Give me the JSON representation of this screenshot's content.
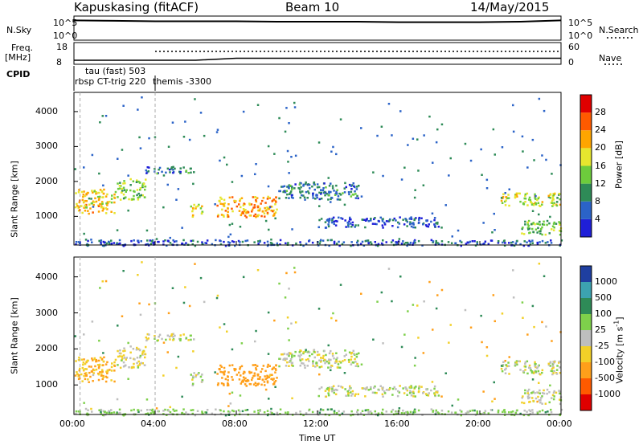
{
  "header": {
    "radar": "Kapuskasing (fitACF)",
    "beam": "Beam 10",
    "date": "14/May/2015"
  },
  "strip": {
    "noise_sky_label": "N.Sky",
    "noise_search_label": "N.Search",
    "noise_ticks": [
      "10^5",
      "10^0"
    ],
    "freq_label": "Freq.",
    "freq_unit": "[MHz]",
    "freq_ticks": [
      "18",
      "8"
    ],
    "nave_label": "Nave",
    "nave_ticks": [
      "60",
      "0"
    ],
    "cpid_label": "CPID"
  },
  "cpid_annotations": [
    {
      "text": "tau (fast) 503",
      "time_h": 1.0
    },
    {
      "text": "rbsp CT-trig 220",
      "time_h": 0.0
    },
    {
      "text": "themis -3300",
      "time_h": 4.0
    }
  ],
  "axes": {
    "xlabel": "Time UT",
    "x_ticks": [
      "00:00",
      "04:00",
      "08:00",
      "12:00",
      "16:00",
      "20:00",
      "00:00"
    ],
    "x_range_h": [
      0,
      24
    ],
    "ylabel": "Slant Range [km]",
    "y_ticks": [
      1000,
      2000,
      3000,
      4000
    ],
    "y_range_km": [
      180,
      4550
    ]
  },
  "colorbars": {
    "power": {
      "label": "Power [dB]",
      "ticks": [
        "4",
        "8",
        "12",
        "16",
        "20",
        "24",
        "28"
      ],
      "colors": [
        "#1f1fd8",
        "#2b63c8",
        "#2e8b57",
        "#6dcc3c",
        "#e6e62e",
        "#ffa500",
        "#ff5a00",
        "#e00000"
      ]
    },
    "velocity": {
      "label": "Velocity [m s",
      "label_sup": "-1",
      "label_end": "]",
      "ticks": [
        "1000",
        "500",
        "100",
        "25",
        "-25",
        "-100",
        "-500",
        "-1000"
      ],
      "colors": [
        "#1f3fa0",
        "#3ca3b0",
        "#2e8b57",
        "#7ed04b",
        "#bebebe",
        "#f2d028",
        "#ff9f1a",
        "#ff5a00",
        "#e00000"
      ]
    }
  },
  "chart_data": [
    {
      "type": "heatmap",
      "title": "Power",
      "x_unit": "hours UT",
      "y_unit": "km",
      "scatter_regions": [
        {
          "t0": 0.0,
          "t1": 2.0,
          "r0": 1100,
          "r1": 1800,
          "power_db": 20,
          "velocity": -100
        },
        {
          "t0": 2.0,
          "t1": 3.5,
          "r0": 1500,
          "r1": 2100,
          "power_db": 14,
          "velocity": -25
        },
        {
          "t0": 3.5,
          "t1": 6.0,
          "r0": 2250,
          "r1": 2450,
          "power_db": 8,
          "velocity": 0
        },
        {
          "t0": 5.7,
          "t1": 6.3,
          "r0": 1000,
          "r1": 1400,
          "power_db": 18,
          "velocity": 25
        },
        {
          "t0": 7.0,
          "t1": 10.0,
          "r0": 1000,
          "r1": 1600,
          "power_db": 22,
          "velocity": -300
        },
        {
          "t0": 10.0,
          "t1": 14.0,
          "r0": 1500,
          "r1": 2000,
          "power_db": 8,
          "velocity": 0
        },
        {
          "t0": 12.0,
          "t1": 18.0,
          "r0": 700,
          "r1": 1000,
          "power_db": 5,
          "velocity": 0
        },
        {
          "t0": 21.0,
          "t1": 24.0,
          "r0": 1300,
          "r1": 1700,
          "power_db": 16,
          "velocity": 0
        },
        {
          "t0": 22.0,
          "t1": 24.0,
          "r0": 500,
          "r1": 900,
          "power_db": 14,
          "velocity": 0
        },
        {
          "t0": 0.0,
          "t1": 24.0,
          "r0": 180,
          "r1": 350,
          "power_db": 6,
          "velocity": 50
        }
      ]
    },
    {
      "type": "line",
      "title": "N.Sky",
      "ylim_log10": [
        0,
        5
      ],
      "series": [
        {
          "name": "N.Sky",
          "values_log10": [
            4.4,
            4.3,
            4.2,
            4.2,
            4.2,
            4.1,
            4.1,
            4.1,
            4.0,
            4.0,
            4.0,
            4.1,
            4.4
          ]
        }
      ]
    },
    {
      "type": "line",
      "title": "Freq.",
      "ylim": [
        8,
        18
      ],
      "series": [
        {
          "name": "Freq.",
          "values": [
            10,
            10,
            10,
            10,
            11,
            11,
            11,
            11,
            11,
            11,
            11,
            11,
            11
          ]
        }
      ]
    }
  ]
}
